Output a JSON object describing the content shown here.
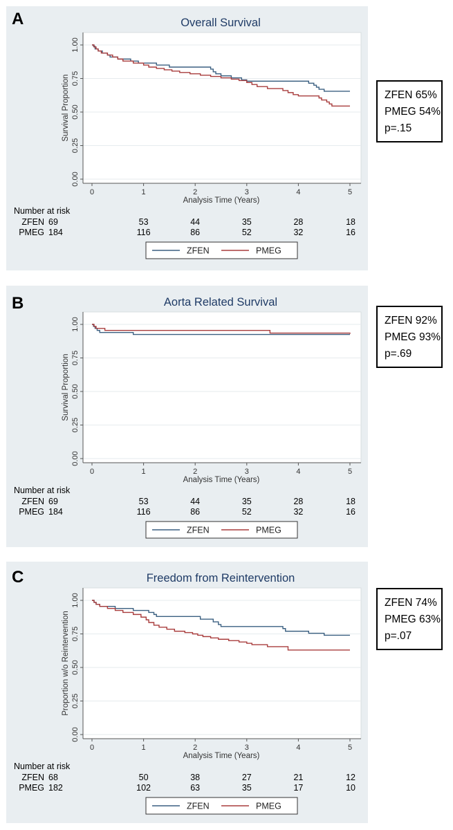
{
  "colors": {
    "zfen": "#3a5f80",
    "pmeg": "#a83c3c",
    "panel_bg": "#e9eef1"
  },
  "panels": [
    {
      "letter": "A",
      "stats": [
        "ZFEN 65%",
        "PMEG 54%",
        "p=.15"
      ],
      "risk_header": "Number at risk",
      "chart_data": {
        "type": "line",
        "title": "Overall Survival",
        "xlabel": "Analysis Time (Years)",
        "ylabel": "Survival Proportion",
        "xlim": [
          0,
          5
        ],
        "ylim": [
          0,
          1
        ],
        "xticks": [
          "0",
          "1",
          "2",
          "3",
          "4",
          "5"
        ],
        "yticks": [
          "0.00",
          "0.25",
          "0.50",
          "0.75",
          "1.00"
        ],
        "series": [
          {
            "name": "ZFEN",
            "step": [
              [
                0,
                1.0
              ],
              [
                0.03,
                0.99
              ],
              [
                0.06,
                0.97
              ],
              [
                0.12,
                0.955
              ],
              [
                0.2,
                0.94
              ],
              [
                0.3,
                0.925
              ],
              [
                0.35,
                0.91
              ],
              [
                0.5,
                0.895
              ],
              [
                0.75,
                0.88
              ],
              [
                0.9,
                0.865
              ],
              [
                1.25,
                0.85
              ],
              [
                1.5,
                0.835
              ],
              [
                2.3,
                0.82
              ],
              [
                2.35,
                0.8
              ],
              [
                2.4,
                0.785
              ],
              [
                2.5,
                0.77
              ],
              [
                2.7,
                0.755
              ],
              [
                2.9,
                0.74
              ],
              [
                3.0,
                0.73
              ],
              [
                3.9,
                0.73
              ],
              [
                4.2,
                0.715
              ],
              [
                4.3,
                0.7
              ],
              [
                4.35,
                0.685
              ],
              [
                4.4,
                0.67
              ],
              [
                4.5,
                0.655
              ],
              [
                5.0,
                0.655
              ]
            ]
          },
          {
            "name": "PMEG",
            "step": [
              [
                0,
                1.0
              ],
              [
                0.04,
                0.985
              ],
              [
                0.08,
                0.97
              ],
              [
                0.12,
                0.955
              ],
              [
                0.18,
                0.94
              ],
              [
                0.3,
                0.925
              ],
              [
                0.4,
                0.91
              ],
              [
                0.5,
                0.895
              ],
              [
                0.6,
                0.88
              ],
              [
                0.8,
                0.865
              ],
              [
                1.0,
                0.85
              ],
              [
                1.1,
                0.835
              ],
              [
                1.25,
                0.825
              ],
              [
                1.4,
                0.815
              ],
              [
                1.55,
                0.805
              ],
              [
                1.7,
                0.795
              ],
              [
                1.9,
                0.785
              ],
              [
                2.1,
                0.775
              ],
              [
                2.3,
                0.765
              ],
              [
                2.5,
                0.755
              ],
              [
                2.7,
                0.745
              ],
              [
                2.85,
                0.735
              ],
              [
                3.0,
                0.72
              ],
              [
                3.1,
                0.705
              ],
              [
                3.2,
                0.69
              ],
              [
                3.4,
                0.675
              ],
              [
                3.7,
                0.66
              ],
              [
                3.8,
                0.645
              ],
              [
                3.9,
                0.63
              ],
              [
                4.0,
                0.62
              ],
              [
                4.4,
                0.605
              ],
              [
                4.45,
                0.59
              ],
              [
                4.55,
                0.575
              ],
              [
                4.6,
                0.56
              ],
              [
                4.65,
                0.545
              ],
              [
                5.0,
                0.545
              ]
            ]
          }
        ],
        "number_at_risk": [
          {
            "name": "ZFEN",
            "values": [
              "69",
              "53",
              "44",
              "35",
              "28",
              "18"
            ]
          },
          {
            "name": "PMEG",
            "values": [
              "184",
              "116",
              "86",
              "52",
              "32",
              "16"
            ]
          }
        ],
        "legend": [
          "ZFEN",
          "PMEG"
        ]
      }
    },
    {
      "letter": "B",
      "stats": [
        "ZFEN 92%",
        "PMEG 93%",
        "p=.69"
      ],
      "risk_header": "Number at risk",
      "chart_data": {
        "type": "line",
        "title": "Aorta Related Survival",
        "xlabel": "Analysis Time (Years)",
        "ylabel": "Survival Proportion",
        "xlim": [
          0,
          5
        ],
        "ylim": [
          0,
          1
        ],
        "xticks": [
          "0",
          "1",
          "2",
          "3",
          "4",
          "5"
        ],
        "yticks": [
          "0.00",
          "0.25",
          "0.50",
          "0.75",
          "1.00"
        ],
        "series": [
          {
            "name": "ZFEN",
            "step": [
              [
                0,
                1.0
              ],
              [
                0.03,
                0.985
              ],
              [
                0.06,
                0.97
              ],
              [
                0.1,
                0.955
              ],
              [
                0.15,
                0.94
              ],
              [
                0.8,
                0.925
              ],
              [
                5.0,
                0.925
              ]
            ]
          },
          {
            "name": "PMEG",
            "step": [
              [
                0,
                1.0
              ],
              [
                0.04,
                0.985
              ],
              [
                0.08,
                0.97
              ],
              [
                0.25,
                0.955
              ],
              [
                3.45,
                0.935
              ],
              [
                5.0,
                0.93
              ]
            ]
          }
        ],
        "number_at_risk": [
          {
            "name": "ZFEN",
            "values": [
              "69",
              "53",
              "44",
              "35",
              "28",
              "18"
            ]
          },
          {
            "name": "PMEG",
            "values": [
              "184",
              "116",
              "86",
              "52",
              "32",
              "16"
            ]
          }
        ],
        "legend": [
          "ZFEN",
          "PMEG"
        ]
      }
    },
    {
      "letter": "C",
      "stats": [
        "ZFEN 74%",
        "PMEG 63%",
        "p=.07"
      ],
      "risk_header": "Number at risk",
      "chart_data": {
        "type": "line",
        "title": "Freedom from Reintervention",
        "xlabel": "Analysis Time (Years)",
        "ylabel": "Proportion w/o Reintervention",
        "xlim": [
          0,
          5
        ],
        "ylim": [
          0,
          1
        ],
        "xticks": [
          "0",
          "1",
          "2",
          "3",
          "4",
          "5"
        ],
        "yticks": [
          "0.00",
          "0.25",
          "0.50",
          "0.75",
          "1.00"
        ],
        "series": [
          {
            "name": "ZFEN",
            "step": [
              [
                0,
                1.0
              ],
              [
                0.04,
                0.985
              ],
              [
                0.08,
                0.97
              ],
              [
                0.15,
                0.955
              ],
              [
                0.45,
                0.94
              ],
              [
                0.8,
                0.925
              ],
              [
                1.1,
                0.91
              ],
              [
                1.2,
                0.895
              ],
              [
                1.25,
                0.88
              ],
              [
                2.1,
                0.86
              ],
              [
                2.35,
                0.84
              ],
              [
                2.45,
                0.82
              ],
              [
                2.5,
                0.805
              ],
              [
                3.7,
                0.79
              ],
              [
                3.75,
                0.77
              ],
              [
                4.0,
                0.77
              ],
              [
                4.2,
                0.755
              ],
              [
                4.5,
                0.74
              ],
              [
                5.0,
                0.74
              ]
            ]
          },
          {
            "name": "PMEG",
            "step": [
              [
                0,
                1.0
              ],
              [
                0.04,
                0.985
              ],
              [
                0.08,
                0.97
              ],
              [
                0.15,
                0.955
              ],
              [
                0.3,
                0.94
              ],
              [
                0.45,
                0.925
              ],
              [
                0.6,
                0.91
              ],
              [
                0.8,
                0.895
              ],
              [
                0.95,
                0.875
              ],
              [
                1.05,
                0.855
              ],
              [
                1.1,
                0.835
              ],
              [
                1.2,
                0.815
              ],
              [
                1.3,
                0.8
              ],
              [
                1.45,
                0.785
              ],
              [
                1.6,
                0.77
              ],
              [
                1.8,
                0.76
              ],
              [
                1.95,
                0.75
              ],
              [
                2.05,
                0.74
              ],
              [
                2.15,
                0.73
              ],
              [
                2.3,
                0.72
              ],
              [
                2.45,
                0.71
              ],
              [
                2.65,
                0.7
              ],
              [
                2.85,
                0.69
              ],
              [
                3.0,
                0.68
              ],
              [
                3.1,
                0.67
              ],
              [
                3.4,
                0.655
              ],
              [
                3.8,
                0.63
              ],
              [
                5.0,
                0.63
              ]
            ]
          }
        ],
        "number_at_risk": [
          {
            "name": "ZFEN",
            "values": [
              "68",
              "50",
              "38",
              "27",
              "21",
              "12"
            ]
          },
          {
            "name": "PMEG",
            "values": [
              "182",
              "102",
              "63",
              "35",
              "17",
              "10"
            ]
          }
        ],
        "legend": [
          "ZFEN",
          "PMEG"
        ]
      }
    }
  ]
}
